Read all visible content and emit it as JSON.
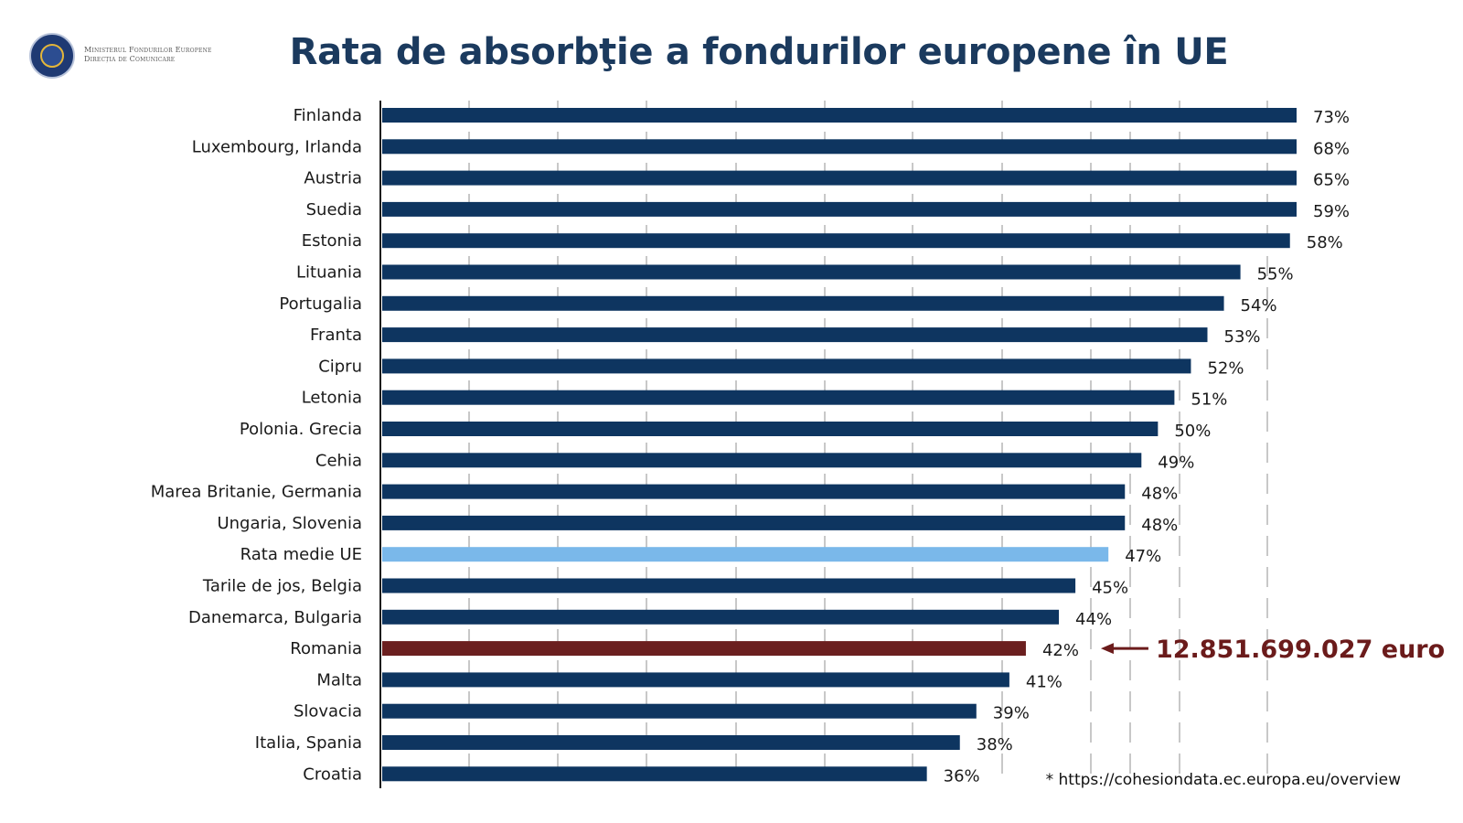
{
  "logo": {
    "line1": "Ministerul Fondurilor Europene",
    "line2": "Direcția de Comunicare"
  },
  "chart_data": {
    "type": "bar",
    "orientation": "horizontal",
    "title": "Rata de absorbţie a fondurilor europene în UE",
    "categories": [
      "Finlanda",
      "Luxembourg, Irlanda",
      "Austria",
      "Suedia",
      "Estonia",
      "Lituania",
      "Portugalia",
      "Franta",
      "Cipru",
      "Letonia",
      "Polonia. Grecia",
      "Cehia",
      "Marea Britanie, Germania",
      "Ungaria, Slovenia",
      "Rata medie UE",
      "Tarile de jos, Belgia",
      "Danemarca, Bulgaria",
      "Romania",
      "Malta",
      "Slovacia",
      "Italia, Spania",
      "Croatia"
    ],
    "values": [
      73,
      68,
      65,
      59,
      58,
      55,
      54,
      53,
      52,
      51,
      50,
      49,
      48,
      48,
      47,
      45,
      44,
      42,
      41,
      39,
      38,
      36
    ],
    "value_labels": [
      "73%",
      "68%",
      "65%",
      "59%",
      "58%",
      "55%",
      "54%",
      "53%",
      "52%",
      "51%",
      "50%",
      "49%",
      "48%",
      "48%",
      "47%",
      "45%",
      "44%",
      "42%",
      "41%",
      "39%",
      "38%",
      "36%"
    ],
    "colors": {
      "default": "#0e3560",
      "highlight_average": "#7ab8ea",
      "highlight_romania": "#6b1f1f",
      "callout": "#6b1b1b",
      "grid": "#b5b5b5"
    },
    "highlight": {
      "Rata medie UE": "highlight_average",
      "Romania": "highlight_romania"
    },
    "annotation": {
      "target": "Romania",
      "text": "12.851.699.027 euro"
    },
    "grid": true,
    "source_note": "* https://cohesiondata.ec.europa.eu/overview"
  }
}
